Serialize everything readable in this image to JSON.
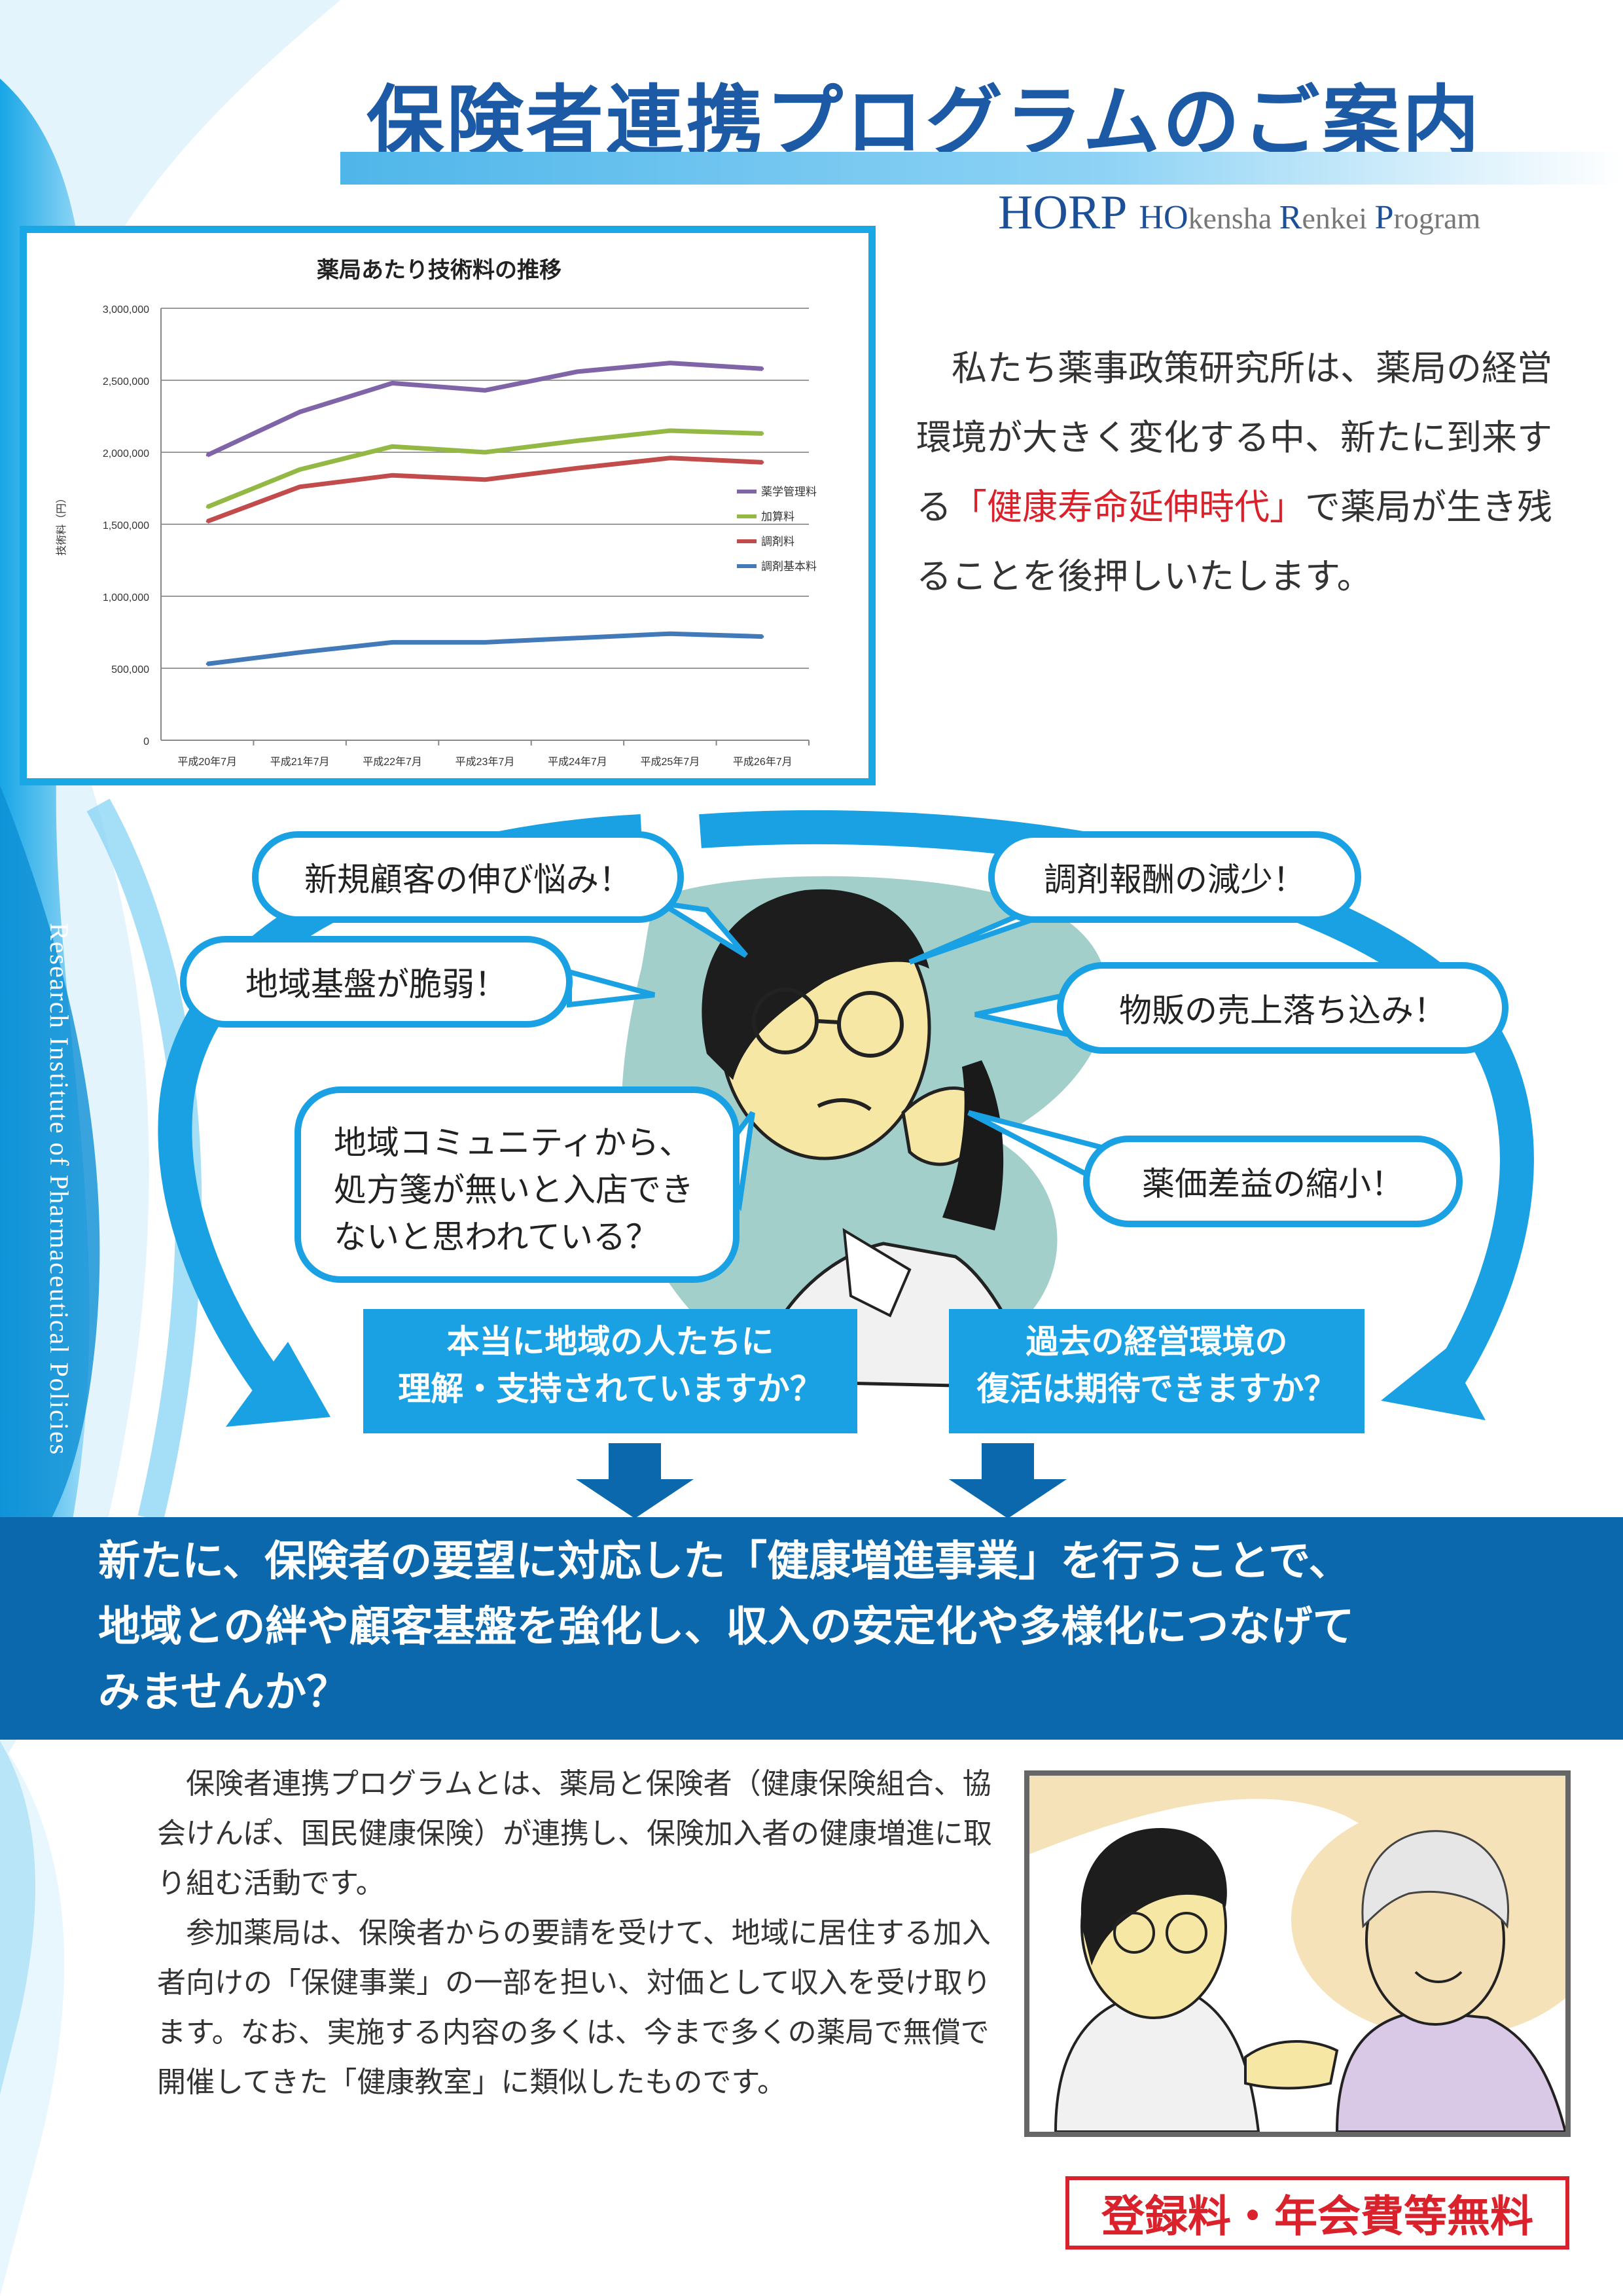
{
  "header": {
    "title": "保険者連携プログラムのご案内",
    "brand_short": "HORP",
    "brand_full": [
      {
        "cap": "HO",
        "rest": "kensha "
      },
      {
        "cap": "R",
        "rest": "enkei "
      },
      {
        "cap": "P",
        "rest": "rogram"
      }
    ]
  },
  "side_text": "Research Institute of Pharmaceutical Policies",
  "chart_data": {
    "type": "line",
    "title": "薬局あたり技術料の推移",
    "ylabel": "技術料（円）",
    "xlabel": "",
    "categories": [
      "平成20年7月",
      "平成21年7月",
      "平成22年7月",
      "平成23年7月",
      "平成24年7月",
      "平成25年7月",
      "平成26年7月"
    ],
    "ylim": [
      0,
      3000000
    ],
    "yticks": [
      "3,000,000",
      "2,500,000",
      "2,000,000",
      "1,500,000",
      "1,000,000",
      "500,000",
      "0"
    ],
    "ytick_values": [
      3000000,
      2500000,
      2000000,
      1500000,
      1000000,
      500000,
      0
    ],
    "grid": true,
    "legend_position": "right",
    "series": [
      {
        "name": "薬学管理料",
        "color": "#7f65a8",
        "values": [
          1980000,
          2280000,
          2480000,
          2430000,
          2560000,
          2620000,
          2580000
        ]
      },
      {
        "name": "加算料",
        "color": "#93b844",
        "values": [
          1620000,
          1880000,
          2040000,
          2000000,
          2080000,
          2150000,
          2130000
        ]
      },
      {
        "name": "調剤料",
        "color": "#c24b4b",
        "values": [
          1520000,
          1760000,
          1840000,
          1810000,
          1890000,
          1960000,
          1930000
        ]
      },
      {
        "name": "調剤基本料",
        "color": "#4279b8",
        "values": [
          530000,
          610000,
          680000,
          680000,
          710000,
          740000,
          720000
        ]
      }
    ]
  },
  "intro": {
    "before": "私たち薬事政策研究所は、薬局の経営環境が大きく変化する中、新たに到来する",
    "highlight": "「健康寿命延伸時代」",
    "after": "で薬局が生き残ることを後押しいたします。"
  },
  "bubbles": {
    "new_customers": "新規顧客の伸び悩み！",
    "fee_decrease": "調剤報酬の減少！",
    "weak_base": "地域基盤が脆弱！",
    "sales_drop": "物販の売上落ち込み！",
    "community": [
      "地域コミュニティから、",
      "処方箋が無いと入店でき",
      "ないと思われている？"
    ],
    "price_margin": "薬価差益の縮小！"
  },
  "questions": {
    "left": [
      "本当に地域の人たちに",
      "理解・支持されていますか？"
    ],
    "right": [
      "過去の経営環境の",
      "復活は期待できますか？"
    ]
  },
  "banner": [
    "新たに、保険者の要望に対応した「健康増進事業」を行うことで、",
    "地域との絆や顧客基盤を強化し、収入の安定化や多様化につなげて",
    "みませんか？"
  ],
  "body": [
    "保険者連携プログラムとは、薬局と保険者（健康保険組合、協会けんぽ、国民健康保険）が連携し、保険加入者の健康増進に取り組む活動です。",
    "参加薬局は、保険者からの要請を受けて、地域に居住する加入者向けの「保健事業」の一部を担い、対価として収入を受け取ります。なお、実施する内容の多くは、今まで多くの薬局で無償で開催してきた「健康教室」に類似したものです。"
  ],
  "badge": "登録料・年会費等無料",
  "colors": {
    "brand_blue": "#1c5aa6",
    "accent_cyan": "#1aa1e3",
    "banner_blue": "#0b68ac",
    "highlight_red": "#d9222b"
  }
}
